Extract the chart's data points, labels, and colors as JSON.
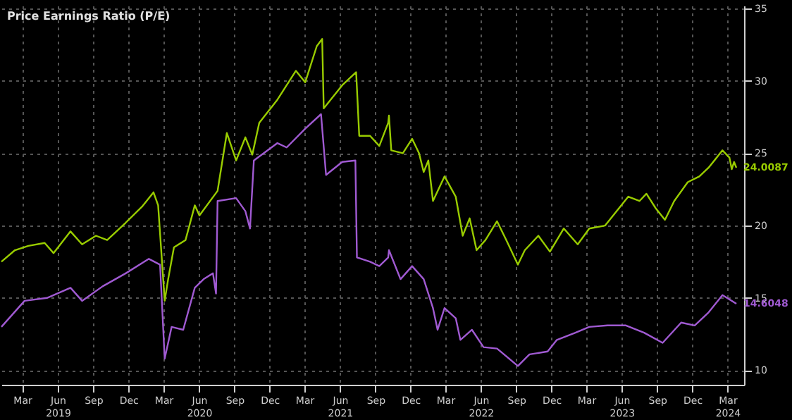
{
  "chart_data": {
    "type": "line",
    "legend_title": "Price Earnings Ratio (P/E)",
    "grid": true,
    "line_style": "solid",
    "marker": "none",
    "xlim": [
      "2019-01-20",
      "2024-04-27"
    ],
    "xticks": [
      {
        "value": "2019-03-15",
        "label": "Mar"
      },
      {
        "value": "2019-06-15",
        "label": "Jun\n2019"
      },
      {
        "value": "2019-09-15",
        "label": "Sep"
      },
      {
        "value": "2019-12-15",
        "label": "Dec"
      },
      {
        "value": "2020-03-15",
        "label": "Mar"
      },
      {
        "value": "2020-06-15",
        "label": "Jun\n2020"
      },
      {
        "value": "2020-09-15",
        "label": "Sep"
      },
      {
        "value": "2020-12-15",
        "label": "Dec"
      },
      {
        "value": "2021-03-15",
        "label": "Mar"
      },
      {
        "value": "2021-06-15",
        "label": "Jun\n2021"
      },
      {
        "value": "2021-09-15",
        "label": "Sep"
      },
      {
        "value": "2021-12-15",
        "label": "Dec"
      },
      {
        "value": "2022-03-15",
        "label": "Mar"
      },
      {
        "value": "2022-06-15",
        "label": "Jun\n2022"
      },
      {
        "value": "2022-09-15",
        "label": "Sep"
      },
      {
        "value": "2022-12-15",
        "label": "Dec"
      },
      {
        "value": "2023-03-15",
        "label": "Mar"
      },
      {
        "value": "2023-06-15",
        "label": "Jun\n2023"
      },
      {
        "value": "2023-09-15",
        "label": "Sep"
      },
      {
        "value": "2023-12-15",
        "label": "Dec"
      },
      {
        "value": "2024-03-15",
        "label": "Mar\n2024"
      }
    ],
    "ylim": [
      9,
      35.2
    ],
    "yticks": [
      10,
      15,
      20,
      25,
      30,
      35
    ],
    "annotations": [
      {
        "text": "24.0087",
        "x": "2024-04-07",
        "y": 24.0087
      },
      {
        "text": "14.6048",
        "x": "2024-04-07",
        "y": 14.6048
      }
    ],
    "series": [
      {
        "color": "#99cc00",
        "x": [
          "2019-01-20",
          "2019-02-24",
          "2019-03-31",
          "2019-05-12",
          "2019-06-04",
          "2019-07-18",
          "2019-08-17",
          "2019-09-22",
          "2019-10-21",
          "2019-12-08",
          "2020-01-19",
          "2020-02-18",
          "2020-03-01",
          "2020-03-18",
          "2020-03-27",
          "2020-04-11",
          "2020-05-11",
          "2020-06-04",
          "2020-06-16",
          "2020-08-02",
          "2020-08-26",
          "2020-09-19",
          "2020-10-13",
          "2020-10-31",
          "2020-11-18",
          "2021-01-04",
          "2021-02-21",
          "2021-03-17",
          "2021-04-16",
          "2021-04-30",
          "2021-05-04",
          "2021-06-21",
          "2021-07-27",
          "2021-08-04",
          "2021-09-01",
          "2021-09-25",
          "2021-10-18",
          "2021-10-20",
          "2021-10-26",
          "2021-11-25",
          "2021-12-19",
          "2022-01-06",
          "2022-01-18",
          "2022-01-30",
          "2022-02-11",
          "2022-03-13",
          "2022-04-11",
          "2022-04-29",
          "2022-05-17",
          "2022-06-04",
          "2022-06-27",
          "2022-07-27",
          "2022-08-20",
          "2022-09-19",
          "2022-10-07",
          "2022-11-11",
          "2022-12-11",
          "2023-01-16",
          "2023-02-21",
          "2023-03-23",
          "2023-05-03",
          "2023-06-02",
          "2023-07-02",
          "2023-07-31",
          "2023-08-18",
          "2023-09-11",
          "2023-10-05",
          "2023-10-29",
          "2023-12-03",
          "2024-01-02",
          "2024-01-26",
          "2024-03-02",
          "2024-03-20",
          "2024-03-26",
          "2024-04-01",
          "2024-04-07"
        ],
        "values": [
          17.5,
          18.3,
          18.6,
          18.8,
          18.1,
          19.6,
          18.7,
          19.3,
          19.0,
          20.2,
          21.3,
          22.3,
          21.4,
          14.8,
          16.3,
          18.5,
          19.0,
          21.4,
          20.7,
          22.4,
          26.4,
          24.5,
          26.1,
          24.9,
          27.1,
          28.7,
          30.7,
          29.9,
          32.4,
          32.9,
          28.1,
          29.7,
          30.6,
          26.2,
          26.2,
          25.5,
          27.1,
          27.6,
          25.2,
          25.0,
          26.0,
          25.0,
          23.7,
          24.5,
          21.7,
          23.4,
          22.0,
          19.3,
          20.5,
          18.3,
          19.0,
          20.3,
          19.0,
          17.3,
          18.3,
          19.3,
          18.2,
          19.8,
          18.7,
          19.8,
          20.0,
          21.0,
          22.0,
          21.7,
          22.2,
          21.2,
          20.4,
          21.7,
          23.0,
          23.4,
          24.0,
          25.2,
          24.7,
          23.9,
          24.4,
          24.0
        ]
      },
      {
        "color": "#a05ad2",
        "x": [
          "2019-01-20",
          "2019-03-21",
          "2019-05-18",
          "2019-07-18",
          "2019-08-17",
          "2019-10-09",
          "2019-12-08",
          "2020-02-06",
          "2020-03-06",
          "2020-03-18",
          "2020-04-05",
          "2020-05-05",
          "2020-06-04",
          "2020-06-27",
          "2020-07-21",
          "2020-07-29",
          "2020-08-02",
          "2020-09-19",
          "2020-10-13",
          "2020-10-25",
          "2020-11-04",
          "2021-01-04",
          "2021-01-28",
          "2021-03-17",
          "2021-04-27",
          "2021-05-10",
          "2021-06-21",
          "2021-07-25",
          "2021-07-29",
          "2021-09-01",
          "2021-09-25",
          "2021-10-18",
          "2021-10-20",
          "2021-11-19",
          "2021-12-19",
          "2022-01-18",
          "2022-02-11",
          "2022-02-23",
          "2022-03-13",
          "2022-04-11",
          "2022-04-23",
          "2022-05-23",
          "2022-06-22",
          "2022-07-27",
          "2022-09-19",
          "2022-10-19",
          "2022-12-05",
          "2022-12-29",
          "2023-02-15",
          "2023-03-23",
          "2023-05-09",
          "2023-06-26",
          "2023-08-12",
          "2023-09-29",
          "2023-11-16",
          "2023-12-21",
          "2024-01-26",
          "2024-03-02",
          "2024-04-07"
        ],
        "values": [
          13.0,
          14.8,
          15.0,
          15.7,
          14.8,
          15.8,
          16.7,
          17.7,
          17.3,
          10.8,
          13.0,
          12.8,
          15.7,
          16.3,
          16.7,
          15.3,
          21.7,
          21.9,
          21.0,
          19.8,
          24.5,
          25.7,
          25.4,
          26.7,
          27.7,
          23.5,
          24.4,
          24.5,
          17.8,
          17.5,
          17.2,
          17.8,
          18.3,
          16.3,
          17.2,
          16.3,
          14.3,
          12.8,
          14.3,
          13.6,
          12.1,
          12.8,
          11.6,
          11.5,
          10.3,
          11.1,
          11.3,
          12.1,
          12.6,
          13.0,
          13.1,
          13.1,
          12.6,
          11.9,
          13.3,
          13.1,
          14.0,
          15.2,
          14.6
        ]
      }
    ]
  }
}
